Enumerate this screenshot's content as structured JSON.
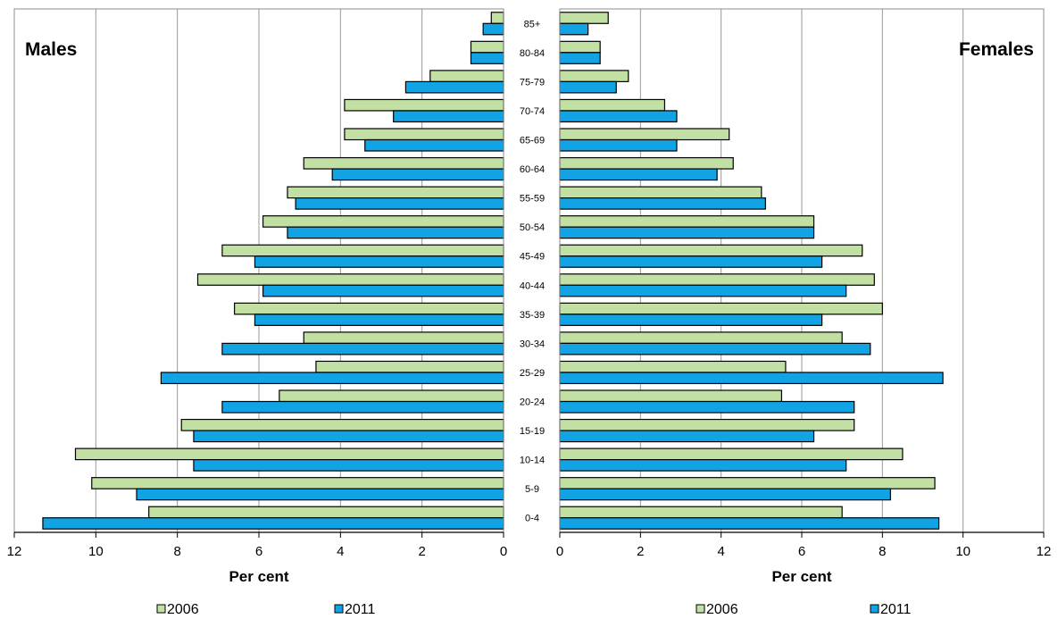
{
  "chart_data": [
    {
      "type": "bar",
      "orientation": "horizontal",
      "title": "Males",
      "xlabel": "Per cent",
      "xlim": [
        0,
        12
      ],
      "x_direction": "reversed",
      "x_ticks": [
        "12",
        "10",
        "8",
        "6",
        "4",
        "2",
        "0"
      ],
      "grid": "vertical",
      "categories": [
        "85+",
        "80-84",
        "75-79",
        "70-74",
        "65-69",
        "60-64",
        "55-59",
        "50-54",
        "45-49",
        "40-44",
        "35-39",
        "30-34",
        "25-29",
        "20-24",
        "15-19",
        "10-14",
        "5-9",
        "0-4"
      ],
      "series": [
        {
          "name": "2006",
          "color": "#c3e0a4",
          "values": [
            0.3,
            0.8,
            1.8,
            3.9,
            3.9,
            4.9,
            5.3,
            5.9,
            6.9,
            7.5,
            6.6,
            4.9,
            4.6,
            5.5,
            7.9,
            10.5,
            10.1,
            8.7
          ]
        },
        {
          "name": "2011",
          "color": "#12a3e4",
          "values": [
            0.5,
            0.8,
            2.4,
            2.7,
            3.4,
            4.2,
            5.1,
            5.3,
            6.1,
            5.9,
            6.1,
            6.9,
            8.4,
            6.9,
            7.6,
            7.6,
            9.0,
            11.3
          ]
        }
      ],
      "legend_position": "bottom"
    },
    {
      "type": "bar",
      "orientation": "horizontal",
      "title": "Females",
      "xlabel": "Per cent",
      "xlim": [
        0,
        12
      ],
      "x_ticks": [
        "0",
        "2",
        "4",
        "6",
        "8",
        "10",
        "12"
      ],
      "grid": "vertical",
      "categories": [
        "85+",
        "80-84",
        "75-79",
        "70-74",
        "65-69",
        "60-64",
        "55-59",
        "50-54",
        "45-49",
        "40-44",
        "35-39",
        "30-34",
        "25-29",
        "20-24",
        "15-19",
        "10-14",
        "5-9",
        "0-4"
      ],
      "series": [
        {
          "name": "2006",
          "color": "#c3e0a4",
          "values": [
            1.2,
            1.0,
            1.7,
            2.6,
            4.2,
            4.3,
            5.0,
            6.3,
            7.5,
            7.8,
            8.0,
            7.0,
            5.6,
            5.5,
            7.3,
            8.5,
            9.3,
            7.0
          ]
        },
        {
          "name": "2011",
          "color": "#12a3e4",
          "values": [
            0.7,
            1.0,
            1.4,
            2.9,
            2.9,
            3.9,
            5.1,
            6.3,
            6.5,
            7.1,
            6.5,
            7.7,
            9.5,
            7.3,
            6.3,
            7.1,
            8.2,
            9.4
          ]
        }
      ],
      "legend_position": "bottom"
    }
  ]
}
